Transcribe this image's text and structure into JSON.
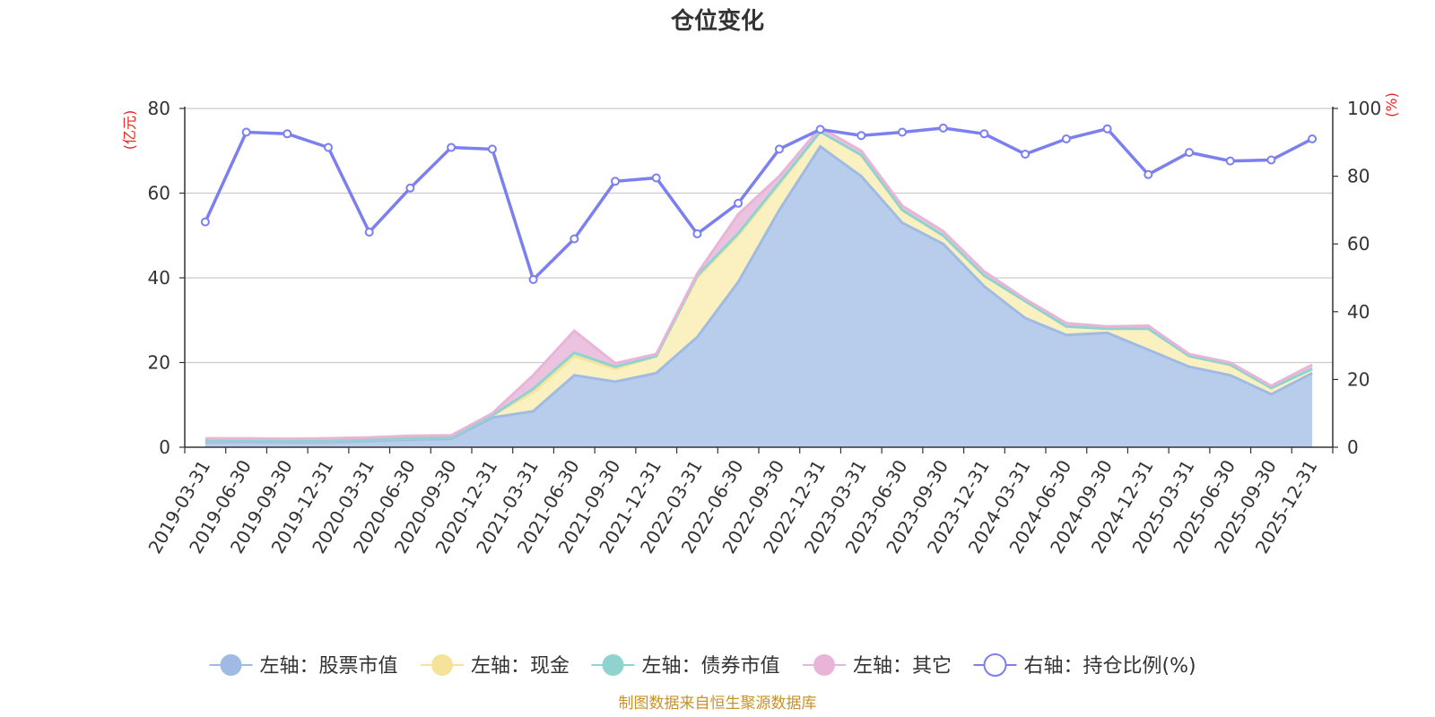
{
  "chart_data": {
    "type": "area",
    "title": "仓位变化",
    "source_note": "制图数据来自恒生聚源数据库",
    "left_axis_unit": "(亿元)",
    "right_axis_unit": "(%)",
    "left_ylim": [
      0,
      80
    ],
    "right_ylim": [
      0,
      100
    ],
    "left_ticks": [
      "0",
      "20",
      "40",
      "60",
      "80"
    ],
    "right_ticks": [
      "0",
      "20",
      "40",
      "60",
      "80",
      "100"
    ],
    "grid": true,
    "legend_position": "bottom",
    "categories": [
      "2019-03-31",
      "2019-06-30",
      "2019-09-30",
      "2019-12-31",
      "2020-03-31",
      "2020-06-30",
      "2020-09-30",
      "2020-12-31",
      "2021-03-31",
      "2021-06-30",
      "2021-09-30",
      "2021-12-31",
      "2022-03-31",
      "2022-06-30",
      "2022-09-30",
      "2022-12-31",
      "2023-03-31",
      "2023-06-30",
      "2023-09-30",
      "2023-12-31",
      "2024-03-31",
      "2024-06-30",
      "2024-09-30",
      "2024-12-31",
      "2025-03-31",
      "2025-06-30",
      "2025-09-30",
      "2025-12-31"
    ],
    "series": [
      {
        "name": "左轴：股票市值",
        "axis": "left",
        "kind": "stack",
        "color": "#a0bbe3",
        "fill": "#b8cdeb",
        "values": [
          1.2,
          1.3,
          1.2,
          1.2,
          1.5,
          1.8,
          2.0,
          7.0,
          8.5,
          17.0,
          15.5,
          17.5,
          26.0,
          39.0,
          56.0,
          71.0,
          64.0,
          53.0,
          48.0,
          38.0,
          30.5,
          26.5,
          27.0,
          23.0,
          19.0,
          17.0,
          12.5,
          17.5
        ]
      },
      {
        "name": "左轴：现金",
        "axis": "left",
        "kind": "stack",
        "color": "#f5e39a",
        "fill": "#fbf0c0",
        "values": [
          0.3,
          0.3,
          0.3,
          0.3,
          0.3,
          0.3,
          0.3,
          0.5,
          4.5,
          4.5,
          3.0,
          4.0,
          14.0,
          11.0,
          6.0,
          3.5,
          5.0,
          3.0,
          2.0,
          2.5,
          4.0,
          2.0,
          1.0,
          5.0,
          2.5,
          2.5,
          1.5,
          1.0
        ]
      },
      {
        "name": "左轴：债券市值",
        "axis": "left",
        "kind": "stack",
        "color": "#8fd3d0",
        "fill": "#bfe6e4",
        "values": [
          0.0,
          0.0,
          0.0,
          0.0,
          0.0,
          0.0,
          0.0,
          0.0,
          0.8,
          0.8,
          0.5,
          0.0,
          0.5,
          0.5,
          0.5,
          0.0,
          0.0,
          0.0,
          0.0,
          0.0,
          0.0,
          0.0,
          0.0,
          0.0,
          0.0,
          0.0,
          0.0,
          0.0
        ]
      },
      {
        "name": "左轴：其它",
        "axis": "left",
        "kind": "stack",
        "color": "#e8b5d8",
        "fill": "#ecc3df",
        "values": [
          0.6,
          0.5,
          0.5,
          0.6,
          0.5,
          0.6,
          0.5,
          0.5,
          3.2,
          5.2,
          0.8,
          0.5,
          0.5,
          4.5,
          1.5,
          1.0,
          1.0,
          1.0,
          1.0,
          1.0,
          0.5,
          0.8,
          0.5,
          0.7,
          0.5,
          0.5,
          0.5,
          1.0
        ]
      },
      {
        "name": "右轴：持仓比例(%)",
        "axis": "right",
        "kind": "line",
        "color": "#7b7ff0",
        "values": [
          66.5,
          93.0,
          92.5,
          88.5,
          63.5,
          76.5,
          88.5,
          88.0,
          49.5,
          61.5,
          78.5,
          79.5,
          63.0,
          72.0,
          88.0,
          93.8,
          92.0,
          93.0,
          94.2,
          92.5,
          86.5,
          91.0,
          94.0,
          80.5,
          87.0,
          84.5,
          84.8,
          91.0
        ]
      }
    ]
  }
}
